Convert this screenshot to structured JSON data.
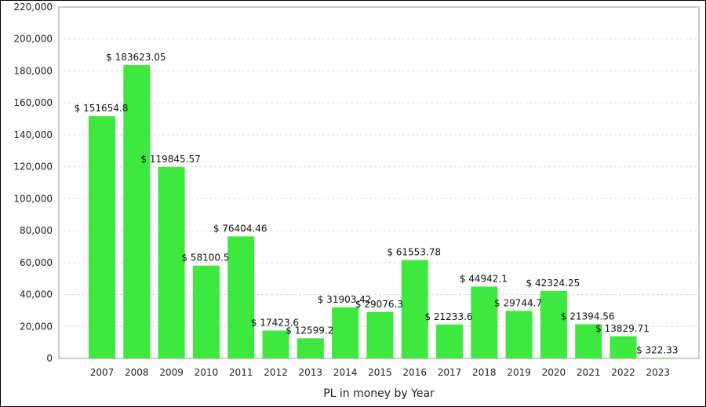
{
  "chart_data": {
    "type": "bar",
    "title": "",
    "xlabel": "PL in money by Year",
    "ylabel": "",
    "ylim": [
      0,
      220000
    ],
    "yticks": [
      "0",
      "20,000",
      "40,000",
      "60,000",
      "80,000",
      "100,000",
      "120,000",
      "140,000",
      "160,000",
      "180,000",
      "200,000",
      "220,000"
    ],
    "categories": [
      "2007",
      "2008",
      "2009",
      "2010",
      "2011",
      "2012",
      "2013",
      "2014",
      "2015",
      "2016",
      "2017",
      "2018",
      "2019",
      "2020",
      "2021",
      "2022",
      "2023"
    ],
    "values": [
      151654.8,
      183623.05,
      119845.57,
      58100.5,
      76404.46,
      17423.6,
      12599.2,
      31903.42,
      29076.3,
      61553.78,
      21233.6,
      44942.1,
      29744.7,
      42324.25,
      21394.56,
      13829.71,
      322.33
    ],
    "data_labels": [
      "$ 151654.8",
      "$ 183623.05",
      "$ 119845.57",
      "$ 58100.5",
      "$ 76404.46",
      "$ 17423.6",
      "$ 12599.2",
      "$ 31903.42",
      "$ 29076.3",
      "$ 61553.78",
      "$ 21233.6",
      "$ 44942.1",
      "$ 29744.7",
      "$ 42324.25",
      "$ 21394.56",
      "$ 13829.71",
      "$ 322.33"
    ],
    "grid": true,
    "bar_color": "#3ee83e",
    "legend": "none"
  }
}
